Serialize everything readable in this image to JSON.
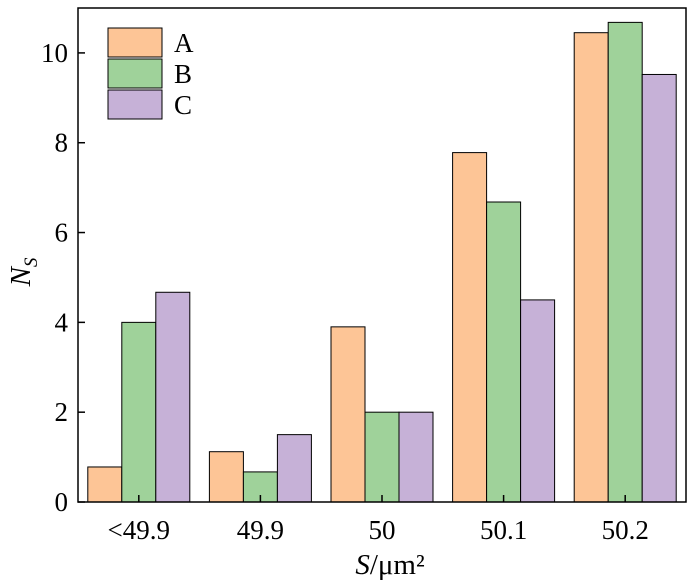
{
  "chart_data": {
    "type": "bar",
    "categories": [
      "<49.9",
      "49.9",
      "50",
      "50.1",
      "50.2"
    ],
    "series": [
      {
        "name": "A",
        "color": "#fdc596",
        "values": [
          0.78,
          1.12,
          3.9,
          7.78,
          10.45
        ]
      },
      {
        "name": "B",
        "color": "#9fd29a",
        "values": [
          4.0,
          0.67,
          2.0,
          6.68,
          10.68
        ]
      },
      {
        "name": "C",
        "color": "#c6b1d7",
        "values": [
          4.67,
          1.5,
          2.0,
          4.5,
          9.52
        ]
      }
    ],
    "xlabel": {
      "italic": "S",
      "rest": "/μm²"
    },
    "ylabel": {
      "italic": "N",
      "sub": "S"
    },
    "ylim": [
      0,
      11
    ],
    "yticks": [
      0,
      2,
      4,
      6,
      8,
      10
    ],
    "grid": false,
    "legend": "top-left"
  }
}
